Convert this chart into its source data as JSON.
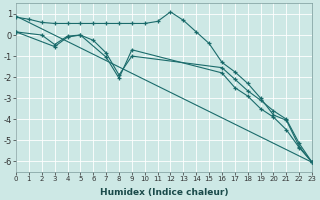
{
  "xlabel": "Humidex (Indice chaleur)",
  "xlim": [
    0,
    23
  ],
  "ylim": [
    -6.5,
    1.5
  ],
  "yticks": [
    1,
    0,
    -1,
    -2,
    -3,
    -4,
    -5,
    -6
  ],
  "xticks": [
    0,
    1,
    2,
    3,
    4,
    5,
    6,
    7,
    8,
    9,
    10,
    11,
    12,
    13,
    14,
    15,
    16,
    17,
    18,
    19,
    20,
    21,
    22,
    23
  ],
  "bg_color": "#cde8e5",
  "line_color": "#1a6b6b",
  "grid_color": "#ffffff",
  "line1_x": [
    0,
    1,
    2,
    3,
    4,
    5,
    6,
    7,
    8,
    9,
    10,
    11,
    12,
    13,
    14,
    15,
    16,
    17,
    18,
    19,
    20,
    21,
    22,
    23
  ],
  "line1_y": [
    0.85,
    0.75,
    0.6,
    0.55,
    0.55,
    0.55,
    0.55,
    0.55,
    0.55,
    0.55,
    0.55,
    0.65,
    1.1,
    0.7,
    0.15,
    -0.4,
    -1.3,
    -1.75,
    -2.3,
    -3.0,
    -3.8,
    -4.05,
    -5.3,
    -6.05
  ],
  "line2_x": [
    0,
    2,
    3,
    4,
    5,
    6,
    7,
    8,
    9,
    16,
    17,
    18,
    19,
    20,
    21,
    22,
    23
  ],
  "line2_y": [
    0.15,
    0.0,
    -0.45,
    -0.05,
    0.0,
    -0.25,
    -0.85,
    -1.9,
    -1.0,
    -1.55,
    -2.1,
    -2.65,
    -3.1,
    -3.6,
    -4.0,
    -5.15,
    -6.05
  ],
  "line3_x": [
    0,
    3,
    4,
    5,
    7,
    8,
    9,
    16,
    17,
    18,
    19,
    20,
    21,
    22,
    23
  ],
  "line3_y": [
    0.15,
    -0.55,
    -0.1,
    0.0,
    -1.05,
    -2.05,
    -0.7,
    -1.8,
    -2.5,
    -2.9,
    -3.5,
    -3.9,
    -4.5,
    -5.35,
    -6.05
  ],
  "line4_x": [
    0,
    23
  ],
  "line4_y": [
    0.9,
    -6.05
  ]
}
